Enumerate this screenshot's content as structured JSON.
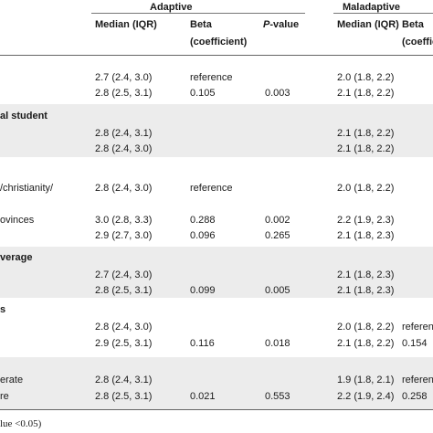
{
  "header": {
    "group1": "Adaptive",
    "group2": "Maladaptive",
    "col_median": "Median (IQR)",
    "col_beta_line1": "Beta",
    "col_beta_line2": "(coefficient)",
    "col_beta_cut": "Beta",
    "col_beta_cut2": "(coeffici",
    "col_p_italic": "P",
    "col_p_rest": "-value"
  },
  "sections": [
    {
      "label": "",
      "rows": [
        {
          "label": "",
          "a_median": "2.7 (2.4, 3.0)",
          "a_beta": "reference",
          "a_p": "",
          "m_median": "2.0 (1.8, 2.2)",
          "m_beta": ""
        },
        {
          "label": "",
          "a_median": "2.8 (2.5, 3.1)",
          "a_beta": "0.105",
          "a_p": "0.003",
          "m_median": "2.1 (1.8, 2.2)",
          "m_beta": ""
        }
      ]
    },
    {
      "label": "al student",
      "rows": [
        {
          "label": "",
          "a_median": "2.8 (2.4, 3.1)",
          "a_beta": "",
          "a_p": "",
          "m_median": "2.1 (1.8, 2.2)",
          "m_beta": ""
        },
        {
          "label": "",
          "a_median": "2.8 (2.4, 3.0)",
          "a_beta": "",
          "a_p": "",
          "m_median": "2.1 (1.8, 2.2)",
          "m_beta": ""
        }
      ]
    },
    {
      "label": "",
      "rows": [
        {
          "label": "/christianity/",
          "a_median": "2.8 (2.4, 3.0)",
          "a_beta": "reference",
          "a_p": "",
          "m_median": "2.0 (1.8, 2.2)",
          "m_beta": ""
        },
        {
          "label": "ovinces",
          "a_median": "3.0 (2.8, 3.3)",
          "a_beta": "0.288",
          "a_p": "0.002",
          "m_median": "2.2 (1.9, 2.3)",
          "m_beta": ""
        },
        {
          "label": "",
          "a_median": "2.9 (2.7, 3.0)",
          "a_beta": "0.096",
          "a_p": "0.265",
          "m_median": "2.1 (1.8, 2.3)",
          "m_beta": ""
        }
      ]
    },
    {
      "label": "verage",
      "rows": [
        {
          "label": "",
          "a_median": "2.7 (2.4, 3.0)",
          "a_beta": "",
          "a_p": "",
          "m_median": "2.1 (1.8, 2.3)",
          "m_beta": ""
        },
        {
          "label": "",
          "a_median": "2.8 (2.5, 3.1)",
          "a_beta": "0.099",
          "a_p": "0.005",
          "m_median": "2.1 (1.8, 2.3)",
          "m_beta": ""
        }
      ]
    },
    {
      "label": "s",
      "rows": [
        {
          "label": "",
          "a_median": "2.8 (2.4, 3.0)",
          "a_beta": "",
          "a_p": "",
          "m_median": "2.0 (1.8, 2.2)",
          "m_beta": "referen"
        },
        {
          "label": "",
          "a_median": "2.9 (2.5, 3.1)",
          "a_beta": "0.116",
          "a_p": "0.018",
          "m_median": "2.1 (1.8, 2.2)",
          "m_beta": "0.154"
        }
      ]
    },
    {
      "label": "",
      "rows": [
        {
          "label": "erate",
          "a_median": "2.8 (2.4, 3.1)",
          "a_beta": "",
          "a_p": "",
          "m_median": "1.9 (1.8, 2.1)",
          "m_beta": "referen"
        },
        {
          "label": "re",
          "a_median": "2.8 (2.5, 3.1)",
          "a_beta": "0.021",
          "a_p": "0.553",
          "m_median": "2.2 (1.9, 2.4)",
          "m_beta": "0.258"
        }
      ]
    }
  ],
  "footnote": "lue <0.05)"
}
